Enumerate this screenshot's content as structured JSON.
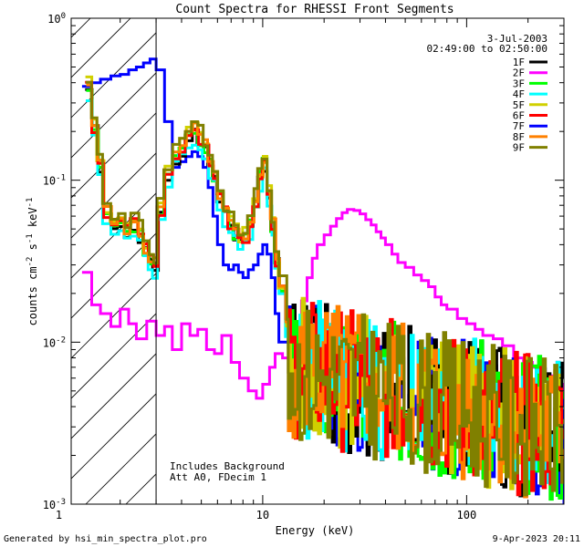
{
  "chart_data": {
    "type": "line",
    "title": "Count Spectra for RHESSI Front Segments",
    "xlabel": "Energy (keV)",
    "ylabel": {
      "base": "counts cm",
      "exp1": "-2",
      "mid": " s",
      "exp2": "-1",
      "tail": " keV",
      "exp3": "-1"
    },
    "xscale": "log",
    "yscale": "log",
    "xlim": [
      1.15,
      300
    ],
    "ylim": [
      0.001,
      1.0
    ],
    "x_ticks": [
      {
        "value": 1,
        "label": "1"
      },
      {
        "value": 10,
        "label": "10"
      },
      {
        "value": 100,
        "label": "100"
      }
    ],
    "y_ticks": [
      {
        "value": 0.001,
        "base": "10",
        "exp": "-3"
      },
      {
        "value": 0.01,
        "base": "10",
        "exp": "-2"
      },
      {
        "value": 0.1,
        "base": "10",
        "exp": "-1"
      },
      {
        "value": 1.0,
        "base": "10",
        "exp": "0"
      }
    ],
    "hatched_region": {
      "x_from": 1.15,
      "x_to": 3.0
    },
    "vertical_line": 3.0,
    "date": "3-Jul-2003",
    "time_range": "02:49:00 to 02:50:00",
    "annotations": [
      "Includes Background",
      "Att A0, FDecim 1"
    ],
    "legend": {
      "position": "top-right"
    },
    "series": [
      {
        "name": "1F",
        "color": "#000000",
        "shift": 0.0,
        "seed": 1
      },
      {
        "name": "2F",
        "color": "#ff00ff",
        "special": "2F"
      },
      {
        "name": "3F",
        "color": "#00ff00",
        "shift": 0.02,
        "seed": 3
      },
      {
        "name": "4F",
        "color": "#00ffff",
        "shift": -0.03,
        "seed": 4
      },
      {
        "name": "5F",
        "color": "#d0d000",
        "shift": 0.05,
        "seed": 5
      },
      {
        "name": "6F",
        "color": "#ff0000",
        "shift": 0.03,
        "seed": 6
      },
      {
        "name": "7F",
        "color": "#0000ff",
        "special": "7F"
      },
      {
        "name": "8F",
        "color": "#ff8000",
        "shift": 0.04,
        "seed": 8
      },
      {
        "name": "9F",
        "color": "#808000",
        "shift": 0.07,
        "seed": 9
      }
    ],
    "base_spectrum": {
      "x": [
        1.35,
        1.45,
        1.55,
        1.65,
        1.8,
        1.95,
        2.1,
        2.25,
        2.45,
        2.6,
        2.75,
        2.9,
        3.05,
        3.3,
        3.6,
        3.9,
        4.2,
        4.5,
        4.8,
        5.1,
        5.4,
        5.7,
        6.0,
        6.4,
        6.8,
        7.2,
        7.6,
        8.0,
        8.5,
        9.0,
        9.5,
        10.0,
        10.5,
        11.0,
        11.5,
        12.0,
        13.0
      ],
      "y": [
        0.36,
        0.2,
        0.12,
        0.06,
        0.05,
        0.05,
        0.045,
        0.05,
        0.045,
        0.035,
        0.03,
        0.028,
        0.06,
        0.1,
        0.13,
        0.15,
        0.18,
        0.19,
        0.17,
        0.15,
        0.12,
        0.1,
        0.075,
        0.06,
        0.05,
        0.045,
        0.04,
        0.042,
        0.05,
        0.07,
        0.1,
        0.12,
        0.08,
        0.05,
        0.03,
        0.02,
        0.012
      ]
    },
    "peak_2F": {
      "x": [
        1.3,
        1.45,
        1.6,
        1.8,
        2.0,
        2.2,
        2.4,
        2.7,
        3.0,
        3.3,
        3.6,
        4.0,
        4.4,
        4.8,
        5.3,
        5.8,
        6.3,
        7.0,
        7.7,
        8.5,
        9.3,
        10.0,
        10.8,
        11.5,
        12.5,
        13.5,
        14.5,
        15.5,
        16.5,
        17.5,
        18.5,
        20.0,
        21.5,
        23.0,
        24.5,
        26.0,
        28.0,
        30.0,
        32.0,
        34.0,
        36.0,
        38.0,
        40.0,
        43.0,
        46.0,
        50.0,
        55.0,
        60.0,
        65.0,
        70.0,
        75.0,
        80.0,
        90.0,
        100.0,
        110.0,
        120.0,
        135.0,
        150.0,
        170.0,
        190.0,
        210.0,
        240.0,
        270.0,
        300.0
      ],
      "y": [
        0.027,
        0.017,
        0.015,
        0.0125,
        0.016,
        0.013,
        0.0105,
        0.0135,
        0.011,
        0.0125,
        0.009,
        0.013,
        0.011,
        0.012,
        0.009,
        0.0085,
        0.011,
        0.0075,
        0.006,
        0.005,
        0.0045,
        0.0055,
        0.007,
        0.0085,
        0.008,
        0.0055,
        0.012,
        0.018,
        0.025,
        0.033,
        0.04,
        0.046,
        0.052,
        0.058,
        0.063,
        0.066,
        0.065,
        0.062,
        0.057,
        0.053,
        0.048,
        0.044,
        0.04,
        0.035,
        0.031,
        0.029,
        0.026,
        0.024,
        0.022,
        0.019,
        0.017,
        0.016,
        0.014,
        0.013,
        0.012,
        0.011,
        0.0105,
        0.0095,
        0.008,
        0.0075,
        0.007,
        0.0062,
        0.0055,
        0.005
      ]
    },
    "peak_7F": {
      "x": [
        1.3,
        1.45,
        1.6,
        1.8,
        2.0,
        2.2,
        2.4,
        2.6,
        2.8,
        3.0,
        3.3,
        3.6,
        3.9,
        4.2,
        4.5,
        4.8,
        5.1,
        5.4,
        5.7,
        6.0,
        6.4,
        6.8,
        7.2,
        7.6,
        8.0,
        8.5,
        9.0,
        9.5,
        10.0,
        10.5,
        11.0,
        11.5,
        12.0
      ],
      "y": [
        0.38,
        0.4,
        0.42,
        0.44,
        0.45,
        0.48,
        0.5,
        0.53,
        0.56,
        0.48,
        0.23,
        0.12,
        0.13,
        0.14,
        0.15,
        0.14,
        0.12,
        0.09,
        0.06,
        0.04,
        0.03,
        0.028,
        0.03,
        0.027,
        0.025,
        0.028,
        0.03,
        0.035,
        0.04,
        0.035,
        0.025,
        0.015,
        0.01
      ]
    },
    "noise_region": {
      "x_from": 13.0,
      "x_to": 300.0,
      "y_from": 0.008,
      "y_to": 0.003
    }
  },
  "footer": {
    "left": "Generated by hsi_min_spectra_plot.pro",
    "right": "9-Apr-2023 20:11"
  }
}
